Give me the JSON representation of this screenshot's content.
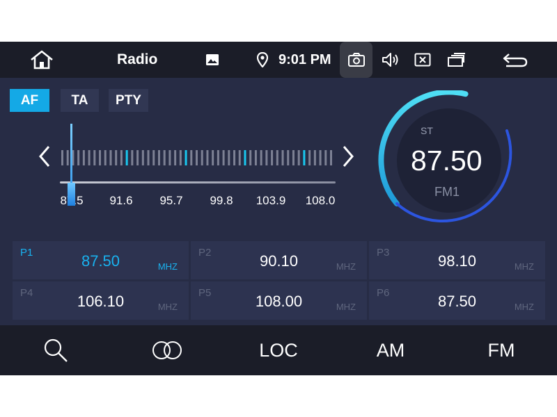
{
  "topbar": {
    "home_icon": "home-icon",
    "title": "Radio",
    "gallery_icon": "image-icon",
    "location_icon": "location-pin-icon",
    "time": "9:01 PM",
    "camera_icon": "camera-icon",
    "volume_icon": "volume-icon",
    "close_icon": "close-box-icon",
    "windows_icon": "recent-windows-icon",
    "back_icon": "back-arrow-icon"
  },
  "buttons": {
    "af": "AF",
    "ta": "TA",
    "pty": "PTY"
  },
  "tuner": {
    "tick_labels": [
      "87.5",
      "91.6",
      "95.7",
      "99.8",
      "103.9",
      "108.0"
    ],
    "min": 87.5,
    "max": 108.0,
    "current": 87.5
  },
  "dial": {
    "stereo_label": "ST",
    "frequency": "87.50",
    "band": "FM1"
  },
  "presets": [
    {
      "label": "P1",
      "value": "87.50",
      "unit": "MHZ",
      "active": true
    },
    {
      "label": "P2",
      "value": "90.10",
      "unit": "MHZ",
      "active": false
    },
    {
      "label": "P3",
      "value": "98.10",
      "unit": "MHZ",
      "active": false
    },
    {
      "label": "P4",
      "value": "106.10",
      "unit": "MHZ",
      "active": false
    },
    {
      "label": "P5",
      "value": "108.00",
      "unit": "MHZ",
      "active": false
    },
    {
      "label": "P6",
      "value": "87.50",
      "unit": "MHZ",
      "active": false
    }
  ],
  "bottombar": {
    "search_icon": "search-icon",
    "stereo_icon": "stereo-rings-icon",
    "loc": "LOC",
    "am": "AM",
    "fm": "FM"
  },
  "colors": {
    "accent": "#14a9e6",
    "background": "#272c45",
    "bar": "#1b1d28"
  }
}
